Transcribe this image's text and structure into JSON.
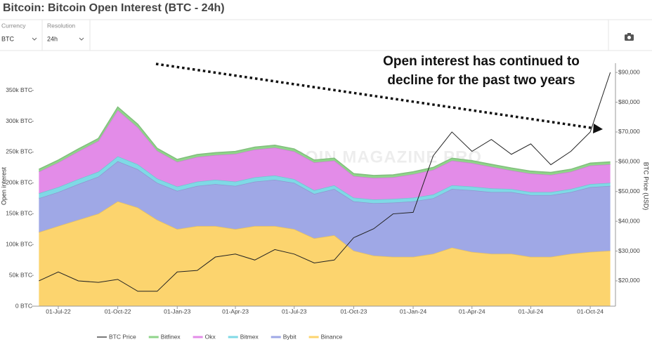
{
  "header": {
    "title": "Bitcoin: Bitcoin Open Interest (BTC - 24h)"
  },
  "controls": [
    {
      "label": "Currency",
      "value": "BTC"
    },
    {
      "label": "Resolution",
      "value": "24h"
    }
  ],
  "chart_data": {
    "type": "stacked-area",
    "annotation": [
      "Open interest has continued to",
      "decline for the past two years"
    ],
    "watermark": "BITCOIN MAGAZINE PRO",
    "ylabel": "Open interest",
    "y2label": "BTC Price (USD)",
    "x": [
      "2022-06-01",
      "2022-07-01",
      "2022-08-01",
      "2022-09-01",
      "2022-10-01",
      "2022-11-01",
      "2022-12-01",
      "2023-01-01",
      "2023-02-01",
      "2023-03-01",
      "2023-04-01",
      "2023-05-01",
      "2023-06-01",
      "2023-07-01",
      "2023-08-01",
      "2023-09-01",
      "2023-10-01",
      "2023-11-01",
      "2023-12-01",
      "2024-01-01",
      "2024-02-01",
      "2024-03-01",
      "2024-04-01",
      "2024-05-01",
      "2024-06-01",
      "2024-07-01",
      "2024-08-01",
      "2024-09-01",
      "2024-10-01",
      "2024-11-01"
    ],
    "xlim": [
      "2022-05-24",
      "2024-11-09"
    ],
    "xticks": [
      {
        "value": "2022-07-01",
        "label": "01-Jul-22"
      },
      {
        "value": "2022-10-01",
        "label": "01-Oct-22"
      },
      {
        "value": "2023-01-01",
        "label": "01-Jan-23"
      },
      {
        "value": "2023-04-01",
        "label": "01-Apr-23"
      },
      {
        "value": "2023-07-01",
        "label": "01-Jul-23"
      },
      {
        "value": "2023-10-01",
        "label": "01-Oct-23"
      },
      {
        "value": "2024-01-01",
        "label": "01-Jan-24"
      },
      {
        "value": "2024-04-01",
        "label": "01-Apr-24"
      },
      {
        "value": "2024-07-01",
        "label": "01-Jul-24"
      },
      {
        "value": "2024-10-01",
        "label": "01-Oct-24"
      }
    ],
    "ylim": [
      0,
      394000
    ],
    "yticks": [
      {
        "value": 0,
        "label": "0 BTC"
      },
      {
        "value": 50000,
        "label": "50k BTC"
      },
      {
        "value": 100000,
        "label": "100k BTC"
      },
      {
        "value": 150000,
        "label": "150k BTC"
      },
      {
        "value": 200000,
        "label": "200k BTC"
      },
      {
        "value": 250000,
        "label": "250k BTC"
      },
      {
        "value": 300000,
        "label": "300k BTC"
      },
      {
        "value": 350000,
        "label": "350k BTC"
      }
    ],
    "y2lim": [
      11500,
      93100
    ],
    "y2ticks": [
      {
        "value": 20000,
        "label": "$20,000"
      },
      {
        "value": 30000,
        "label": "$30,000"
      },
      {
        "value": 40000,
        "label": "$40,000"
      },
      {
        "value": 50000,
        "label": "$50,000"
      },
      {
        "value": 60000,
        "label": "$60,000"
      },
      {
        "value": 70000,
        "label": "$70,000"
      },
      {
        "value": 80000,
        "label": "$80,000"
      },
      {
        "value": 90000,
        "label": "$90,000"
      }
    ],
    "series": [
      {
        "name": "BTC Price",
        "color": "#222222",
        "axis": "y2",
        "values": [
          20000,
          23000,
          20000,
          19500,
          20500,
          16500,
          16500,
          23000,
          23500,
          28000,
          29000,
          27000,
          30500,
          29000,
          26000,
          27000,
          34500,
          37500,
          42500,
          43000,
          62000,
          70000,
          63500,
          67500,
          62500,
          66000,
          59000,
          63500,
          70000,
          90000
        ]
      },
      {
        "name": "Bitfinex",
        "color": "#8fd48a",
        "values": [
          4000,
          4000,
          4000,
          4000,
          5000,
          5000,
          4000,
          4000,
          4000,
          4000,
          4000,
          4000,
          4000,
          4000,
          4000,
          4000,
          4000,
          4000,
          4000,
          4000,
          4000,
          4000,
          4000,
          4000,
          4000,
          4000,
          4000,
          4000,
          4000,
          4000
        ]
      },
      {
        "name": "Okx",
        "color": "#e38ce8",
        "values": [
          35000,
          40000,
          45000,
          50000,
          75000,
          60000,
          45000,
          40000,
          40000,
          40000,
          45000,
          45000,
          45000,
          45000,
          45000,
          40000,
          35000,
          35000,
          35000,
          38000,
          40000,
          40000,
          38000,
          35000,
          30000,
          30000,
          28000,
          28000,
          30000,
          30000
        ]
      },
      {
        "name": "Bitmex",
        "color": "#7fd9e6",
        "values": [
          8000,
          8000,
          8000,
          8000,
          8000,
          8000,
          7000,
          7000,
          7000,
          7000,
          7000,
          7000,
          7000,
          6000,
          6000,
          6000,
          6000,
          6000,
          6000,
          6000,
          6000,
          6000,
          6000,
          6000,
          5000,
          5000,
          5000,
          5000,
          5000,
          5000
        ]
      },
      {
        "name": "Bybit",
        "color": "#9fa8e6",
        "values": [
          55000,
          55000,
          58000,
          60000,
          65000,
          62000,
          60000,
          62000,
          65000,
          68000,
          70000,
          72000,
          75000,
          75000,
          72000,
          75000,
          80000,
          85000,
          88000,
          90000,
          90000,
          95000,
          100000,
          100000,
          100000,
          100000,
          100000,
          100000,
          105000,
          105000
        ]
      },
      {
        "name": "Binance",
        "color": "#fcd46e",
        "values": [
          120000,
          130000,
          140000,
          150000,
          170000,
          160000,
          140000,
          125000,
          130000,
          130000,
          125000,
          130000,
          130000,
          125000,
          110000,
          115000,
          90000,
          82000,
          80000,
          80000,
          85000,
          95000,
          88000,
          85000,
          85000,
          80000,
          80000,
          85000,
          88000,
          90000
        ]
      }
    ]
  }
}
